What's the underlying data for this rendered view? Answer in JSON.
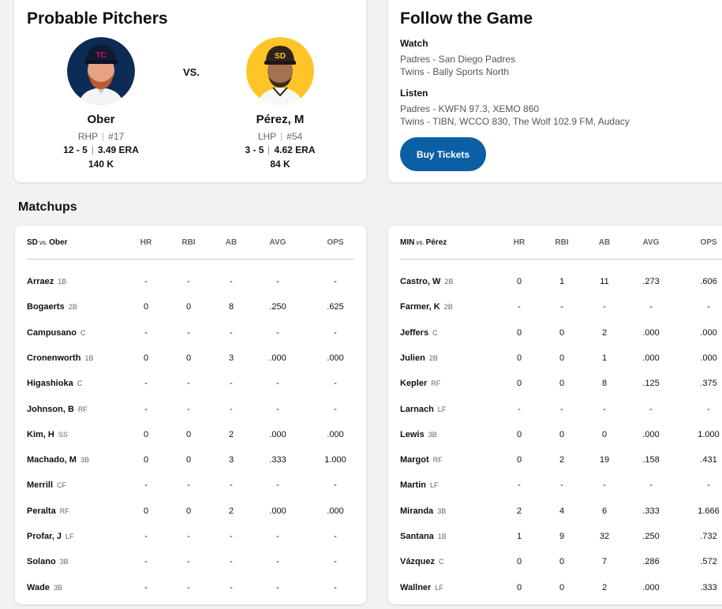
{
  "probable_pitchers": {
    "title": "Probable Pitchers",
    "vs_label": "VS.",
    "left": {
      "name": "Ober",
      "throws": "RHP",
      "number": "#17",
      "record": "12 - 5",
      "era": "3.49 ERA",
      "strikeouts": "140 K",
      "avatar_bg": "#0c2c56"
    },
    "right": {
      "name": "Pérez, M",
      "throws": "LHP",
      "number": "#54",
      "record": "3 - 5",
      "era": "4.62 ERA",
      "strikeouts": "84 K",
      "avatar_bg": "#ffc425"
    }
  },
  "follow_game": {
    "title": "Follow the Game",
    "watch_label": "Watch",
    "watch": [
      "Padres - San Diego Padres",
      "Twins - Bally Sports North"
    ],
    "listen_label": "Listen",
    "listen": [
      "Padres - KWFN 97.3, XEMO 860",
      "Twins - TIBN, WCCO 830, The Wolf 102.9 FM, Audacy"
    ],
    "button_label": "Buy Tickets",
    "button_color": "#0b5fa5"
  },
  "matchups": {
    "title": "Matchups",
    "columns": [
      "HR",
      "RBI",
      "AB",
      "AVG",
      "OPS"
    ],
    "left_table": {
      "team": "SD",
      "vs": "vs.",
      "pitcher": "Ober",
      "rows": [
        {
          "name": "Arraez",
          "pos": "1B",
          "hr": "-",
          "rbi": "-",
          "ab": "-",
          "avg": "-",
          "ops": "-"
        },
        {
          "name": "Bogaerts",
          "pos": "2B",
          "hr": "0",
          "rbi": "0",
          "ab": "8",
          "avg": ".250",
          "ops": ".625"
        },
        {
          "name": "Campusano",
          "pos": "C",
          "hr": "-",
          "rbi": "-",
          "ab": "-",
          "avg": "-",
          "ops": "-"
        },
        {
          "name": "Cronenworth",
          "pos": "1B",
          "hr": "0",
          "rbi": "0",
          "ab": "3",
          "avg": ".000",
          "ops": ".000"
        },
        {
          "name": "Higashioka",
          "pos": "C",
          "hr": "-",
          "rbi": "-",
          "ab": "-",
          "avg": "-",
          "ops": "-"
        },
        {
          "name": "Johnson, B",
          "pos": "RF",
          "hr": "-",
          "rbi": "-",
          "ab": "-",
          "avg": "-",
          "ops": "-"
        },
        {
          "name": "Kim, H",
          "pos": "SS",
          "hr": "0",
          "rbi": "0",
          "ab": "2",
          "avg": ".000",
          "ops": ".000"
        },
        {
          "name": "Machado, M",
          "pos": "3B",
          "hr": "0",
          "rbi": "0",
          "ab": "3",
          "avg": ".333",
          "ops": "1.000"
        },
        {
          "name": "Merrill",
          "pos": "CF",
          "hr": "-",
          "rbi": "-",
          "ab": "-",
          "avg": "-",
          "ops": "-"
        },
        {
          "name": "Peralta",
          "pos": "RF",
          "hr": "0",
          "rbi": "0",
          "ab": "2",
          "avg": ".000",
          "ops": ".000"
        },
        {
          "name": "Profar, J",
          "pos": "LF",
          "hr": "-",
          "rbi": "-",
          "ab": "-",
          "avg": "-",
          "ops": "-"
        },
        {
          "name": "Solano",
          "pos": "3B",
          "hr": "-",
          "rbi": "-",
          "ab": "-",
          "avg": "-",
          "ops": "-"
        },
        {
          "name": "Wade",
          "pos": "3B",
          "hr": "-",
          "rbi": "-",
          "ab": "-",
          "avg": "-",
          "ops": "-"
        }
      ]
    },
    "right_table": {
      "team": "MIN",
      "vs": "vs.",
      "pitcher": "Pérez",
      "rows": [
        {
          "name": "Castro, W",
          "pos": "2B",
          "hr": "0",
          "rbi": "1",
          "ab": "11",
          "avg": ".273",
          "ops": ".606"
        },
        {
          "name": "Farmer, K",
          "pos": "2B",
          "hr": "-",
          "rbi": "-",
          "ab": "-",
          "avg": "-",
          "ops": "-"
        },
        {
          "name": "Jeffers",
          "pos": "C",
          "hr": "0",
          "rbi": "0",
          "ab": "2",
          "avg": ".000",
          "ops": ".000"
        },
        {
          "name": "Julien",
          "pos": "2B",
          "hr": "0",
          "rbi": "0",
          "ab": "1",
          "avg": ".000",
          "ops": ".000"
        },
        {
          "name": "Kepler",
          "pos": "RF",
          "hr": "0",
          "rbi": "0",
          "ab": "8",
          "avg": ".125",
          "ops": ".375"
        },
        {
          "name": "Larnach",
          "pos": "LF",
          "hr": "-",
          "rbi": "-",
          "ab": "-",
          "avg": "-",
          "ops": "-"
        },
        {
          "name": "Lewis",
          "pos": "3B",
          "hr": "0",
          "rbi": "0",
          "ab": "0",
          "avg": ".000",
          "ops": "1.000"
        },
        {
          "name": "Margot",
          "pos": "RF",
          "hr": "0",
          "rbi": "2",
          "ab": "19",
          "avg": ".158",
          "ops": ".431"
        },
        {
          "name": "Martin",
          "pos": "LF",
          "hr": "-",
          "rbi": "-",
          "ab": "-",
          "avg": "-",
          "ops": "-"
        },
        {
          "name": "Miranda",
          "pos": "3B",
          "hr": "2",
          "rbi": "4",
          "ab": "6",
          "avg": ".333",
          "ops": "1.666"
        },
        {
          "name": "Santana",
          "pos": "1B",
          "hr": "1",
          "rbi": "9",
          "ab": "32",
          "avg": ".250",
          "ops": ".732"
        },
        {
          "name": "Vázquez",
          "pos": "C",
          "hr": "0",
          "rbi": "0",
          "ab": "7",
          "avg": ".286",
          "ops": ".572"
        },
        {
          "name": "Wallner",
          "pos": "LF",
          "hr": "0",
          "rbi": "0",
          "ab": "2",
          "avg": ".000",
          "ops": ".333"
        }
      ]
    }
  }
}
